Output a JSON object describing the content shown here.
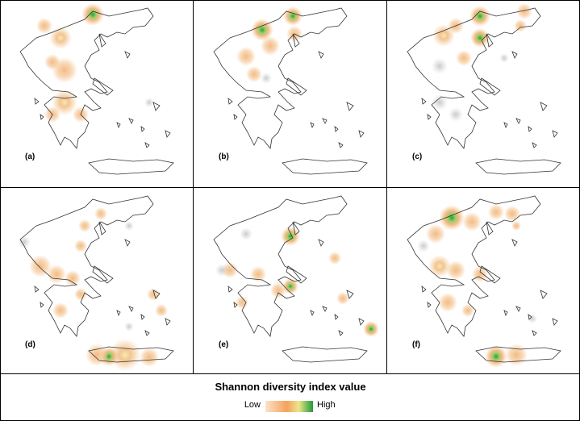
{
  "panels": [
    {
      "label": "(a)"
    },
    {
      "label": "(b)"
    },
    {
      "label": "(c)"
    },
    {
      "label": "(d)"
    },
    {
      "label": "(e)"
    },
    {
      "label": "(f)"
    }
  ],
  "legend": {
    "title": "Shannon diversity index value",
    "low": "Low",
    "high": "High"
  }
}
